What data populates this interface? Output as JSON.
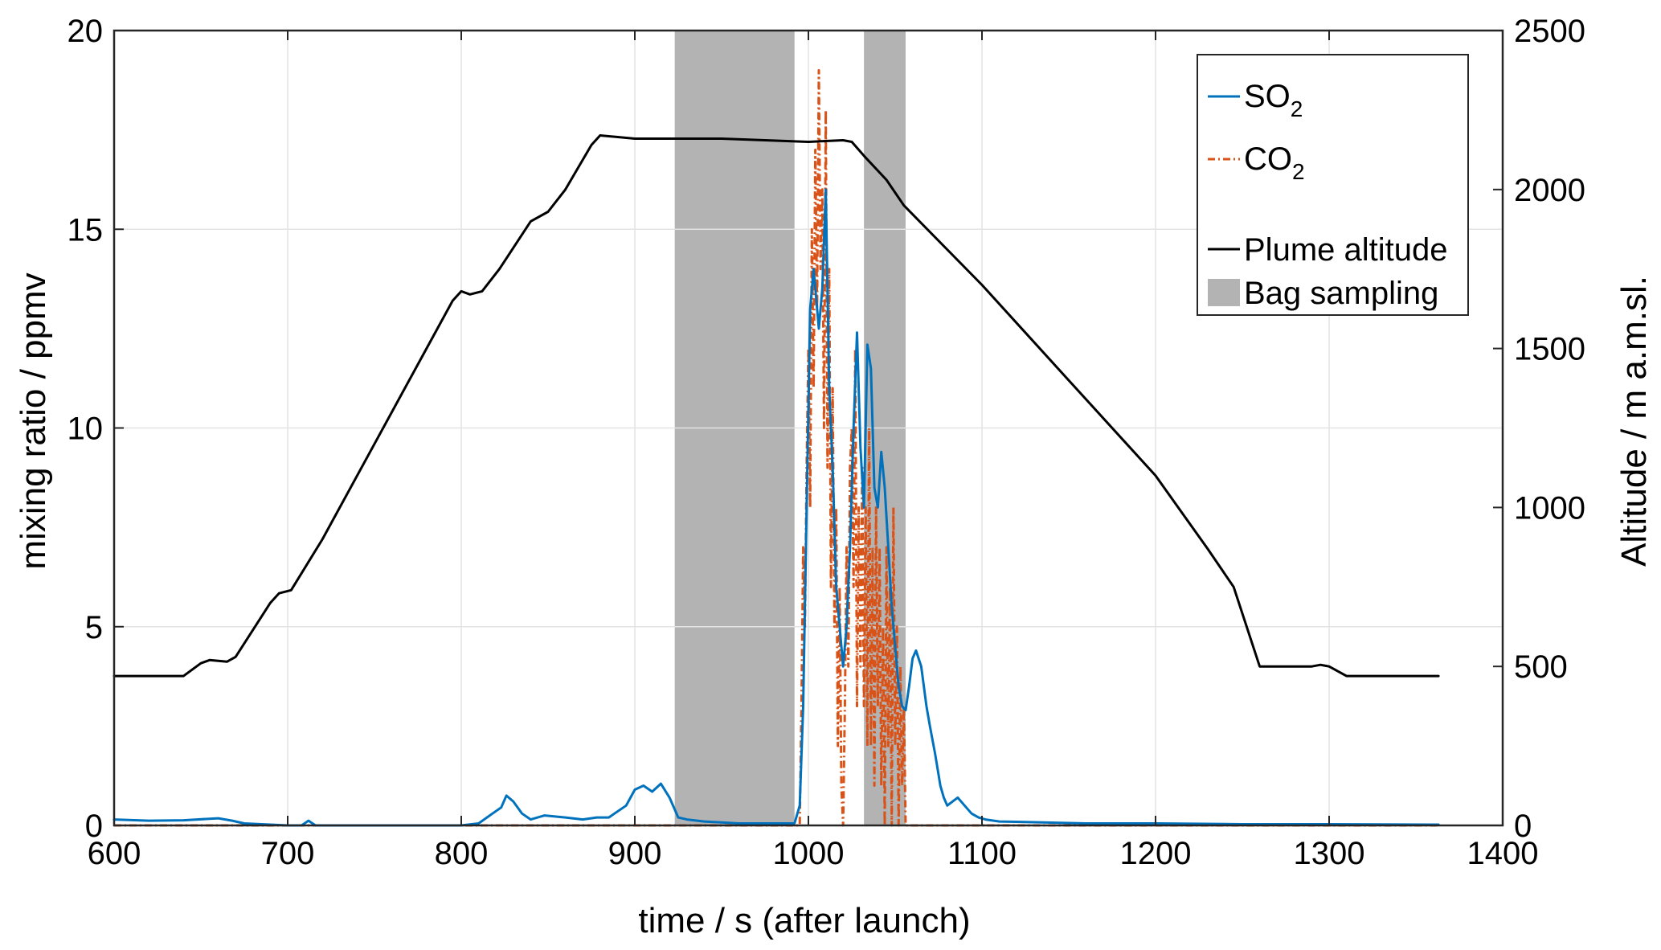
{
  "chart_data": {
    "type": "line",
    "xlabel": "time / s (after launch)",
    "ylabel_left": "mixing ratio / ppmv",
    "ylabel_right": "Altitude / m a.m.sl.",
    "xlim": [
      600,
      1400
    ],
    "ylim_left": [
      0,
      20
    ],
    "ylim_right": [
      0,
      2500
    ],
    "x_ticks": [
      "600",
      "700",
      "800",
      "900",
      "1000",
      "1100",
      "1200",
      "1300",
      "1400"
    ],
    "y_left_ticks": [
      "0",
      "5",
      "10",
      "15",
      "20"
    ],
    "y_right_ticks": [
      "0",
      "500",
      "1000",
      "1500",
      "2000",
      "2500"
    ],
    "grid": true,
    "legend_position": "top-right",
    "legend": {
      "so2": {
        "base": "SO",
        "sub": "2"
      },
      "co2": {
        "base": "CO",
        "sub": "2"
      },
      "altitude": "Plume altitude",
      "bag": "Bag sampling"
    },
    "colors": {
      "so2": "#0072BD",
      "co2": "#D95319",
      "altitude": "#000000",
      "bag": "#B3B3B3"
    },
    "bag_sampling_intervals": [
      [
        923,
        992
      ],
      [
        1032,
        1056
      ]
    ],
    "series": [
      {
        "name": "SO2",
        "axis": "left",
        "style": "solid",
        "x": [
          600,
          620,
          640,
          660,
          668,
          675,
          700,
          708,
          712,
          716,
          730,
          780,
          800,
          810,
          818,
          823,
          826,
          830,
          835,
          840,
          848,
          860,
          870,
          878,
          885,
          895,
          900,
          905,
          910,
          915,
          920,
          925,
          930,
          940,
          960,
          980,
          992,
          995,
          997,
          999,
          1001,
          1003,
          1006,
          1008,
          1010,
          1012,
          1014,
          1016,
          1018,
          1020,
          1022,
          1024,
          1026,
          1028,
          1030,
          1032,
          1034,
          1036,
          1038,
          1040,
          1042,
          1044,
          1046,
          1048,
          1050,
          1052,
          1054,
          1056,
          1058,
          1060,
          1062,
          1065,
          1068,
          1070,
          1073,
          1076,
          1078,
          1080,
          1083,
          1086,
          1090,
          1094,
          1098,
          1102,
          1110,
          1130,
          1160,
          1200,
          1250,
          1300,
          1363
        ],
        "y": [
          0.15,
          0.12,
          0.13,
          0.18,
          0.12,
          0.05,
          0.0,
          0.0,
          0.12,
          0.0,
          0.0,
          0.0,
          0.0,
          0.05,
          0.3,
          0.45,
          0.75,
          0.6,
          0.3,
          0.15,
          0.25,
          0.2,
          0.15,
          0.2,
          0.2,
          0.5,
          0.9,
          1.0,
          0.85,
          1.05,
          0.7,
          0.2,
          0.15,
          0.1,
          0.05,
          0.05,
          0.05,
          0.5,
          3.0,
          8.0,
          13.0,
          14.0,
          12.5,
          13.5,
          16.0,
          11.0,
          9.0,
          6.0,
          5.0,
          4.0,
          5.0,
          7.0,
          10.0,
          12.4,
          9.5,
          8.0,
          12.1,
          11.5,
          8.5,
          8.0,
          9.4,
          8.5,
          7.0,
          5.5,
          4.5,
          3.5,
          3.0,
          2.9,
          3.5,
          4.2,
          4.4,
          4.0,
          3.0,
          2.5,
          1.8,
          1.0,
          0.7,
          0.5,
          0.6,
          0.7,
          0.5,
          0.3,
          0.2,
          0.15,
          0.1,
          0.08,
          0.05,
          0.05,
          0.03,
          0.03,
          0.02
        ]
      },
      {
        "name": "CO2",
        "axis": "left",
        "style": "dash-dot",
        "x": [
          600,
          995,
          996,
          997,
          998,
          999,
          1000,
          1001,
          1002,
          1003,
          1004,
          1005,
          1006,
          1007,
          1008,
          1009,
          1010,
          1011,
          1012,
          1013,
          1014,
          1015,
          1016,
          1017,
          1018,
          1019,
          1020,
          1021,
          1022,
          1023,
          1024,
          1025,
          1026,
          1027,
          1028,
          1029,
          1030,
          1031,
          1032,
          1033,
          1034,
          1035,
          1036,
          1037,
          1038,
          1039,
          1040,
          1041,
          1042,
          1043,
          1044,
          1045,
          1046,
          1047,
          1048,
          1049,
          1050,
          1051,
          1052,
          1053,
          1054,
          1055,
          1056,
          1070,
          1363
        ],
        "y": [
          0,
          0,
          3,
          7,
          5,
          9,
          12,
          8,
          15,
          11,
          17,
          13,
          19,
          14,
          16,
          10,
          18,
          9,
          14,
          6,
          11,
          5,
          8,
          2,
          6,
          1,
          0,
          3,
          7,
          4,
          9,
          10,
          6,
          12,
          3,
          8,
          4,
          9,
          3,
          8,
          2,
          10,
          2,
          7,
          1,
          8,
          3,
          7,
          1,
          5,
          0,
          7,
          2,
          6,
          0,
          8,
          2,
          5,
          0,
          4,
          1,
          3,
          0,
          0,
          0
        ]
      },
      {
        "name": "Plume altitude",
        "axis": "right",
        "style": "solid",
        "x": [
          600,
          640,
          650,
          655,
          665,
          670,
          690,
          695,
          702,
          720,
          750,
          780,
          795,
          800,
          805,
          812,
          822,
          840,
          850,
          860,
          875,
          880,
          900,
          950,
          1000,
          1020,
          1025,
          1033,
          1045,
          1055,
          1100,
          1150,
          1200,
          1230,
          1245,
          1260,
          1290,
          1295,
          1300,
          1310,
          1330,
          1363
        ],
        "y": [
          470,
          470,
          510,
          520,
          515,
          530,
          700,
          730,
          740,
          900,
          1200,
          1500,
          1650,
          1680,
          1670,
          1680,
          1750,
          1900,
          1930,
          2000,
          2140,
          2170,
          2160,
          2160,
          2150,
          2155,
          2150,
          2100,
          2030,
          1950,
          1700,
          1400,
          1100,
          870,
          750,
          500,
          500,
          505,
          500,
          470,
          470,
          470
        ]
      }
    ]
  }
}
